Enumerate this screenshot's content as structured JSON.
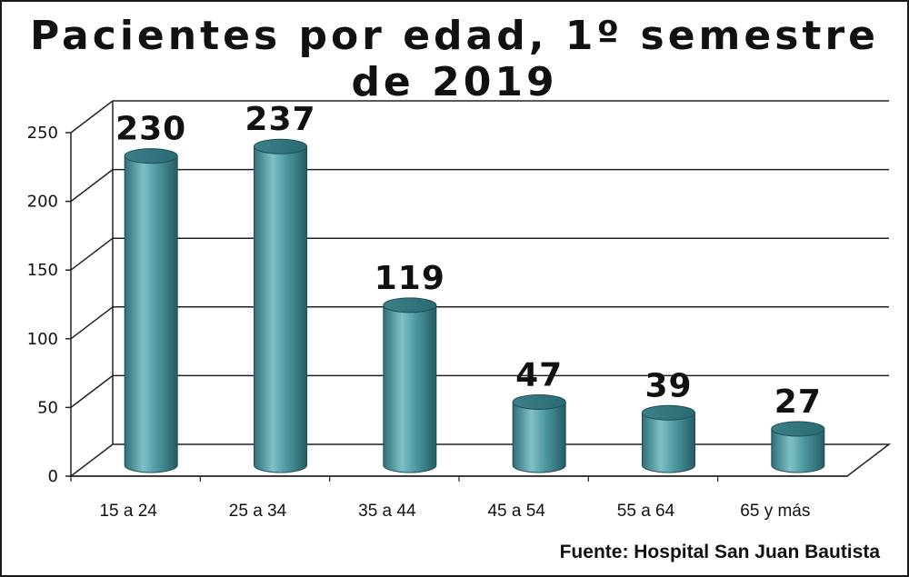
{
  "chart_data": {
    "type": "bar",
    "title": "Pacientes por edad, 1º semestre de 2019",
    "categories": [
      "15 a 24",
      "25 a 34",
      "35 a 44",
      "45 a 54",
      "55 a 64",
      "65 y más"
    ],
    "values": [
      230,
      237,
      119,
      47,
      39,
      27
    ],
    "data_labels": [
      "230",
      "237",
      "119",
      "47",
      "39",
      "27"
    ],
    "ylim": [
      0,
      250
    ],
    "yticks": [
      0,
      50,
      100,
      150,
      200,
      250
    ],
    "grid": true,
    "style": "3d-cylinder",
    "bar_color": "#4f9aa3"
  },
  "source_note": "Fuente: Hospital San Juan Bautista"
}
